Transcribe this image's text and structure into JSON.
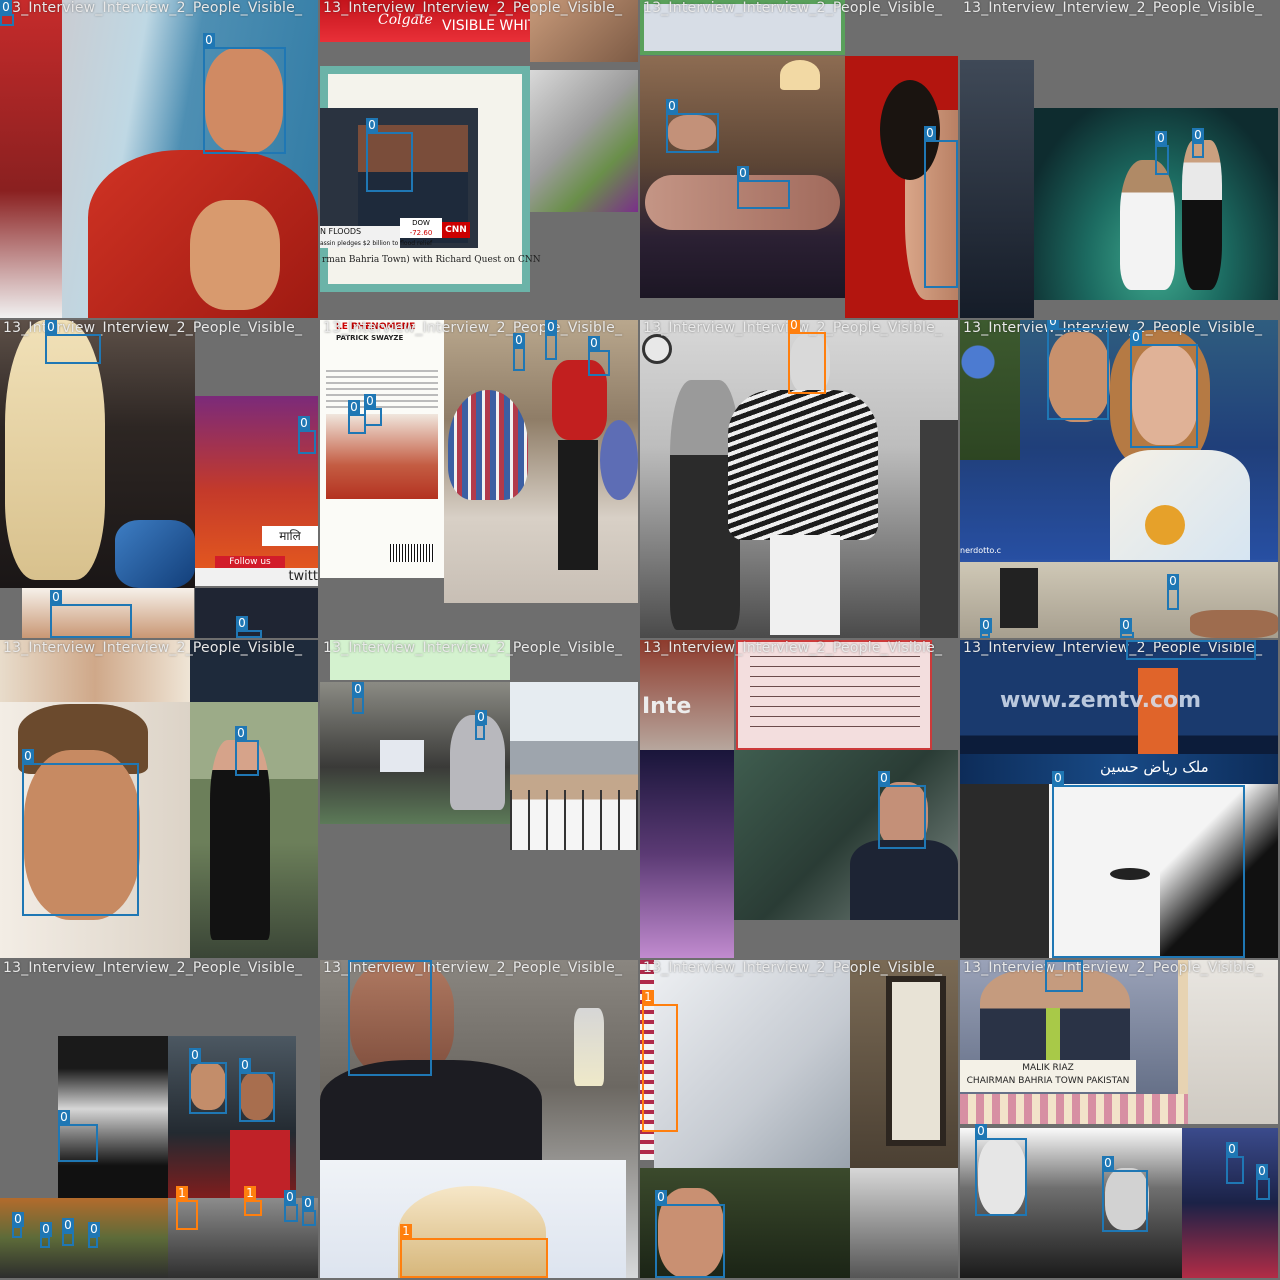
{
  "mosaic": {
    "tile_label": "13_Interview_Interview_2_People_Visible_",
    "palette": {
      "class_0": "#1f77b4",
      "class_1": "#ff7f0e",
      "padding": "#727272"
    },
    "tiles": [
      {
        "boxes": [
          {
            "tag": "0"
          },
          {
            "tag": "0"
          }
        ]
      },
      {
        "boxes": [
          {
            "tag": "0"
          }
        ],
        "text": {
          "brand": "Colgate",
          "product": "VISIBLE WHITE",
          "ticker": "N FLOODS",
          "ticker_sub": "assin pledges $2 billion to flood relief",
          "dow_label": "DOW",
          "dow_value": "-72.60",
          "network": "CNN",
          "caption": "rman Bahria Town) with Richard Quest on CNN"
        }
      },
      {
        "boxes": [
          {
            "tag": "0"
          },
          {
            "tag": "0"
          },
          {
            "tag": "0"
          }
        ]
      },
      {
        "boxes": [
          {
            "tag": "0"
          },
          {
            "tag": "0"
          }
        ]
      },
      {
        "boxes": [
          {
            "tag": "0"
          },
          {
            "tag": "0"
          },
          {
            "tag": "0"
          },
          {
            "tag": "0"
          }
        ],
        "text": {
          "follow": "Follow us",
          "banner": "मालि",
          "handle": "twitt"
        }
      },
      {
        "boxes": [
          {
            "tag": "0"
          },
          {
            "tag": "0"
          },
          {
            "tag": "0"
          },
          {
            "tag": "0"
          },
          {
            "tag": "0"
          }
        ],
        "text": {
          "cover_title": "LE PHENOMENE",
          "cover_line": "PATRICK SWAYZE"
        }
      },
      {
        "boxes": [
          {
            "tag": "0",
            "cls": 1
          }
        ]
      },
      {
        "boxes": [
          {
            "tag": "0"
          },
          {
            "tag": "0"
          },
          {
            "tag": "0"
          },
          {
            "tag": "0"
          },
          {
            "tag": "0"
          }
        ],
        "text": {
          "credit": "nerdotto.c"
        }
      },
      {
        "boxes": [
          {
            "tag": "0"
          },
          {
            "tag": "0"
          }
        ]
      },
      {
        "boxes": [
          {
            "tag": "0"
          },
          {
            "tag": "0"
          }
        ]
      },
      {
        "boxes": [
          {
            "tag": "0"
          }
        ],
        "text": {
          "inter": "Inte"
        }
      },
      {
        "boxes": [
          {
            "tag": "0"
          },
          {
            "tag": "0"
          }
        ],
        "text": {
          "site": "www.zemtv.com",
          "urdu": "ملک ریاض حسین"
        }
      },
      {
        "boxes": [
          {
            "tag": "0"
          },
          {
            "tag": "0"
          },
          {
            "tag": "0"
          },
          {
            "tag": "1",
            "cls": 1
          },
          {
            "tag": "1",
            "cls": 1
          },
          {
            "tag": "0"
          },
          {
            "tag": "0"
          },
          {
            "tag": "0"
          },
          {
            "tag": "0"
          },
          {
            "tag": "0"
          },
          {
            "tag": "0"
          }
        ]
      },
      {
        "boxes": [
          {
            "tag": "0"
          },
          {
            "tag": "1",
            "cls": 1
          }
        ]
      },
      {
        "boxes": [
          {
            "tag": "1",
            "cls": 1
          },
          {
            "tag": "0"
          }
        ]
      },
      {
        "boxes": [
          {
            "tag": "0"
          },
          {
            "tag": "0"
          },
          {
            "tag": "0"
          },
          {
            "tag": "0"
          },
          {
            "tag": "0"
          }
        ],
        "text": {
          "name": "MALIK RIAZ",
          "title": "CHAIRMAN BAHRIA TOWN PAKISTAN"
        }
      }
    ]
  }
}
